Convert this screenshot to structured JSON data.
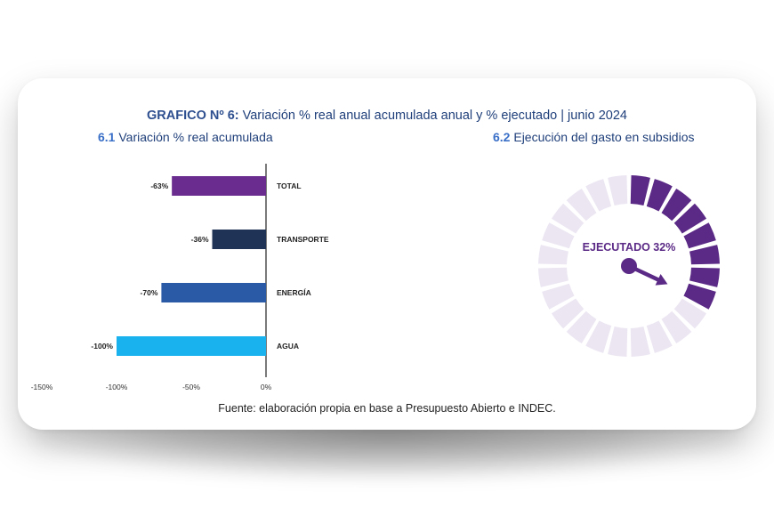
{
  "title": {
    "prefix": "GRAFICO Nº 6:",
    "text": "Variación % real anual acumulada anual y % ejecutado | junio 2024"
  },
  "subtitle_left": {
    "num": "6.1",
    "text": "Variación % real acumulada"
  },
  "subtitle_right": {
    "num": "6.2",
    "text": "Ejecución del gasto en subsidios"
  },
  "source": "Fuente: elaboración propia en base a Presupuesto Abierto e INDEC.",
  "chart_data": [
    {
      "type": "bar",
      "orientation": "horizontal",
      "categories": [
        "TOTAL",
        "TRANSPORTE",
        "ENERGÍA",
        "AGUA"
      ],
      "values": [
        -63,
        -36,
        -70,
        -100
      ],
      "value_labels": [
        "-63%",
        "-36%",
        "-70%",
        "-100%"
      ],
      "colors": [
        "#6a2c8f",
        "#1e3356",
        "#2a5aa6",
        "#1ab2ee"
      ],
      "xlim": [
        -150,
        0
      ],
      "xticks": [
        -150,
        -100,
        -50,
        0
      ],
      "xtick_labels": [
        "-150%",
        "-100%",
        "-50%",
        "0%"
      ]
    },
    {
      "type": "gauge",
      "value": 32,
      "label": "EJECUTADO 32%",
      "segments": 24,
      "filled_color": "#5b2a86",
      "empty_color": "#ece6f2"
    }
  ]
}
